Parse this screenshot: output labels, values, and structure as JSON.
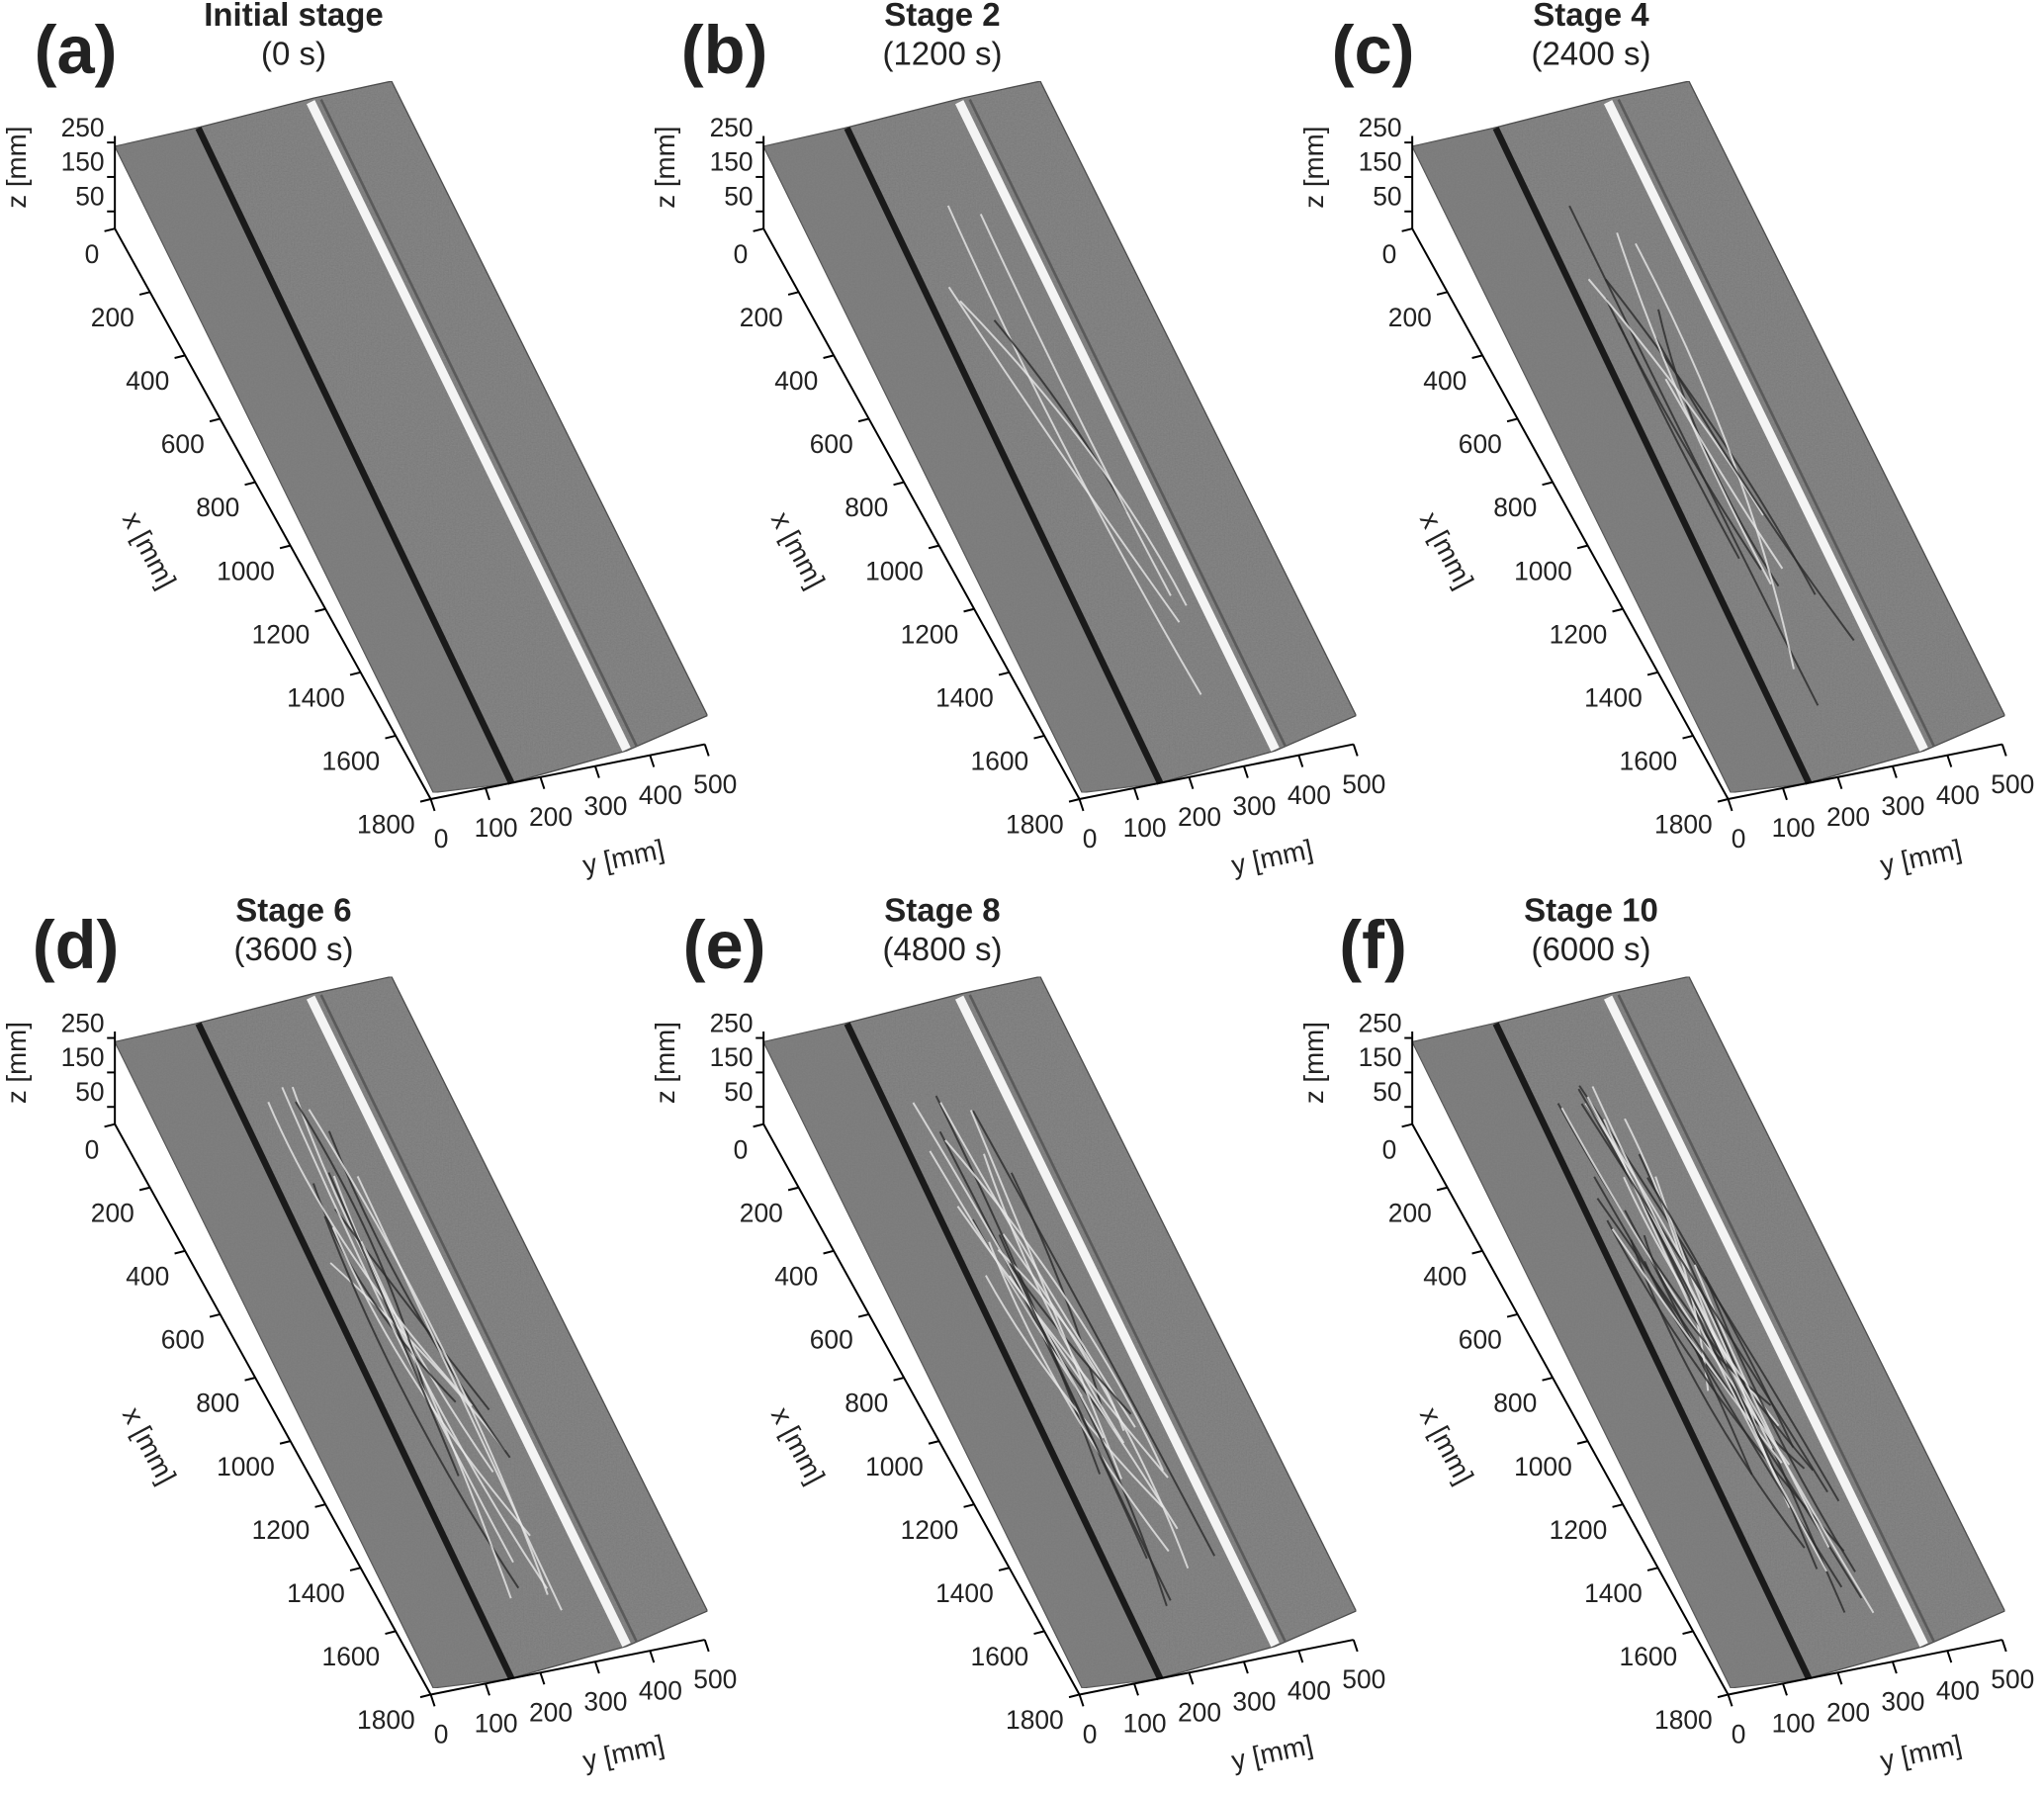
{
  "panels": [
    {
      "label": "(a)",
      "title": "Initial stage",
      "subtitle": "(0 s)"
    },
    {
      "label": "(b)",
      "title": "Stage 2",
      "subtitle": "(1200 s)"
    },
    {
      "label": "(c)",
      "title": "Stage 4",
      "subtitle": "(2400 s)"
    },
    {
      "label": "(d)",
      "title": "Stage 6",
      "subtitle": "(3600 s)"
    },
    {
      "label": "(e)",
      "title": "Stage 8",
      "subtitle": "(4800 s)"
    },
    {
      "label": "(f)",
      "title": "Stage 10",
      "subtitle": "(6000 s)"
    }
  ],
  "axes": {
    "x": {
      "label": "x [mm]",
      "ticks": [
        0,
        200,
        400,
        600,
        800,
        1000,
        1200,
        1400,
        1600,
        1800
      ]
    },
    "y": {
      "label": "y [mm]",
      "ticks": [
        0,
        100,
        200,
        300,
        400,
        500
      ]
    },
    "z": {
      "label": "z [mm]",
      "ticks": [
        50,
        150,
        250
      ]
    }
  }
}
